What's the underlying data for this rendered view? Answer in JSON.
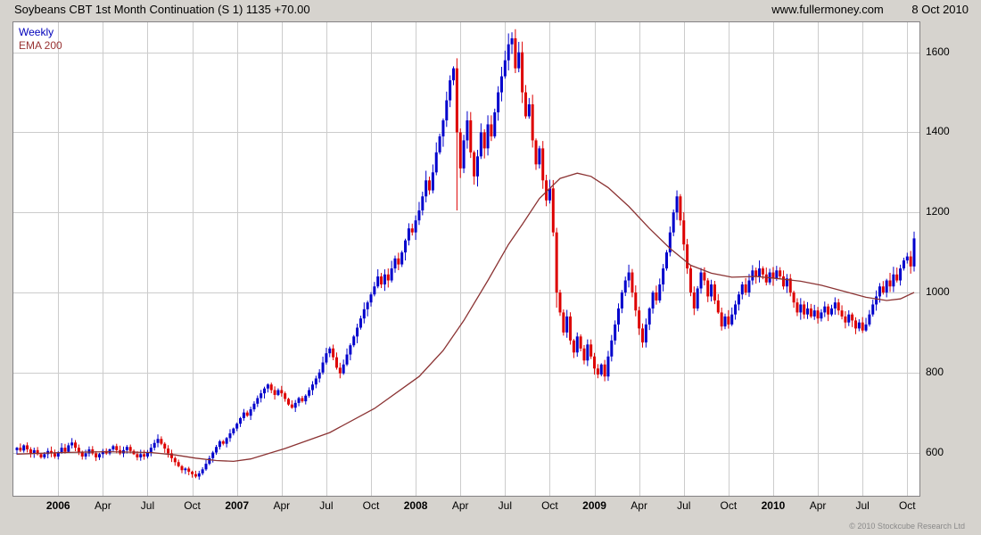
{
  "header": {
    "title": "Soybeans CBT 1st Month Continuation (S 1) 1135 +70.00",
    "website": "www.fullermoney.com",
    "date": "8 Oct 2010"
  },
  "footer": {
    "copyright": "© 2010 Stockcube Research Ltd"
  },
  "chart_data": {
    "type": "candlestick",
    "title": "Soybeans CBT 1st Month Continuation (S 1)",
    "timeframe": "Weekly",
    "last_price": 1135,
    "change": "+70.00",
    "legend": [
      {
        "label": "Weekly",
        "color": "#0000bb"
      },
      {
        "label": "EMA 200",
        "color": "#993333"
      }
    ],
    "ylim": [
      492,
      1675
    ],
    "y_ticks": [
      600,
      800,
      1000,
      1200,
      1400,
      1600
    ],
    "x_ticks": [
      {
        "week": 12,
        "label": "2006",
        "year": true
      },
      {
        "week": 25,
        "label": "Apr"
      },
      {
        "week": 38,
        "label": "Jul"
      },
      {
        "week": 51,
        "label": "Oct"
      },
      {
        "week": 64,
        "label": "2007",
        "year": true
      },
      {
        "week": 77,
        "label": "Apr"
      },
      {
        "week": 90,
        "label": "Jul"
      },
      {
        "week": 103,
        "label": "Oct"
      },
      {
        "week": 116,
        "label": "2008",
        "year": true
      },
      {
        "week": 129,
        "label": "Apr"
      },
      {
        "week": 142,
        "label": "Jul"
      },
      {
        "week": 155,
        "label": "Oct"
      },
      {
        "week": 168,
        "label": "2009",
        "year": true
      },
      {
        "week": 181,
        "label": "Apr"
      },
      {
        "week": 194,
        "label": "Jul"
      },
      {
        "week": 207,
        "label": "Oct"
      },
      {
        "week": 220,
        "label": "2010",
        "year": true
      },
      {
        "week": 233,
        "label": "Apr"
      },
      {
        "week": 246,
        "label": "Jul"
      },
      {
        "week": 259,
        "label": "Oct"
      }
    ],
    "weekly_closes": [
      612,
      605,
      618,
      608,
      598,
      606,
      596,
      588,
      596,
      604,
      598,
      590,
      600,
      612,
      602,
      618,
      625,
      612,
      600,
      590,
      598,
      608,
      598,
      588,
      596,
      604,
      598,
      608,
      616,
      606,
      598,
      606,
      614,
      604,
      596,
      588,
      596,
      590,
      600,
      612,
      624,
      634,
      622,
      610,
      598,
      586,
      576,
      566,
      556,
      560,
      552,
      546,
      540,
      548,
      558,
      572,
      586,
      600,
      614,
      628,
      622,
      636,
      648,
      660,
      672,
      686,
      700,
      692,
      708,
      722,
      736,
      748,
      760,
      770,
      756,
      744,
      756,
      748,
      734,
      720,
      712,
      724,
      736,
      728,
      742,
      756,
      770,
      785,
      800,
      825,
      848,
      860,
      838,
      812,
      798,
      820,
      845,
      868,
      890,
      912,
      935,
      958,
      975,
      995,
      1015,
      1040,
      1020,
      1045,
      1030,
      1060,
      1085,
      1070,
      1100,
      1130,
      1160,
      1150,
      1180,
      1205,
      1240,
      1280,
      1255,
      1300,
      1350,
      1390,
      1430,
      1480,
      1530,
      1560,
      1400,
      1310,
      1380,
      1430,
      1350,
      1290,
      1340,
      1400,
      1360,
      1420,
      1390,
      1450,
      1500,
      1540,
      1580,
      1620,
      1635,
      1560,
      1600,
      1500,
      1440,
      1470,
      1380,
      1320,
      1360,
      1280,
      1230,
      1260,
      1150,
      1000,
      950,
      900,
      940,
      880,
      850,
      890,
      860,
      830,
      870,
      840,
      810,
      795,
      820,
      790,
      840,
      880,
      920,
      960,
      1000,
      1030,
      1050,
      1000,
      955,
      910,
      875,
      920,
      960,
      1000,
      980,
      1020,
      1060,
      1100,
      1150,
      1200,
      1240,
      1180,
      1120,
      1060,
      1000,
      960,
      1010,
      1050,
      1030,
      990,
      1020,
      980,
      950,
      915,
      940,
      920,
      945,
      970,
      995,
      1020,
      1000,
      1030,
      1055,
      1040,
      1060,
      1045,
      1025,
      1050,
      1035,
      1055,
      1040,
      1015,
      1035,
      1000,
      975,
      950,
      970,
      945,
      960,
      940,
      955,
      935,
      950,
      965,
      945,
      960,
      975,
      955,
      940,
      925,
      945,
      930,
      910,
      925,
      905,
      920,
      945,
      970,
      990,
      1015,
      1000,
      1030,
      1015,
      1045,
      1030,
      1060,
      1080,
      1090,
      1065,
      1135
    ],
    "wick_overrides": {
      "52": {
        "low": 536
      },
      "127": {
        "high": 1565
      },
      "128": {
        "low": 1205
      },
      "144": {
        "high": 1650
      },
      "157": {
        "low": 962
      },
      "171": {
        "low": 778
      },
      "192": {
        "high": 1255
      },
      "261": {
        "high": 1152
      }
    },
    "ema200": [
      [
        0,
        596
      ],
      [
        13,
        600
      ],
      [
        26,
        602
      ],
      [
        39,
        600
      ],
      [
        46,
        594
      ],
      [
        52,
        586
      ],
      [
        58,
        580
      ],
      [
        63,
        578
      ],
      [
        68,
        584
      ],
      [
        78,
        610
      ],
      [
        91,
        650
      ],
      [
        104,
        710
      ],
      [
        117,
        790
      ],
      [
        124,
        855
      ],
      [
        130,
        930
      ],
      [
        137,
        1030
      ],
      [
        143,
        1120
      ],
      [
        147,
        1170
      ],
      [
        152,
        1235
      ],
      [
        158,
        1285
      ],
      [
        163,
        1298
      ],
      [
        167,
        1290
      ],
      [
        172,
        1262
      ],
      [
        178,
        1215
      ],
      [
        184,
        1160
      ],
      [
        190,
        1110
      ],
      [
        196,
        1068
      ],
      [
        202,
        1048
      ],
      [
        208,
        1038
      ],
      [
        215,
        1040
      ],
      [
        221,
        1035
      ],
      [
        228,
        1028
      ],
      [
        234,
        1018
      ],
      [
        241,
        1002
      ],
      [
        247,
        988
      ],
      [
        253,
        980
      ],
      [
        257,
        984
      ],
      [
        261,
        1000
      ]
    ],
    "colors": {
      "up": "#0000cc",
      "down": "#dd0000",
      "ema": "#8b3333",
      "grid": "#cccccc",
      "plot_border": "#848284",
      "background": "#d6d3ce"
    }
  }
}
